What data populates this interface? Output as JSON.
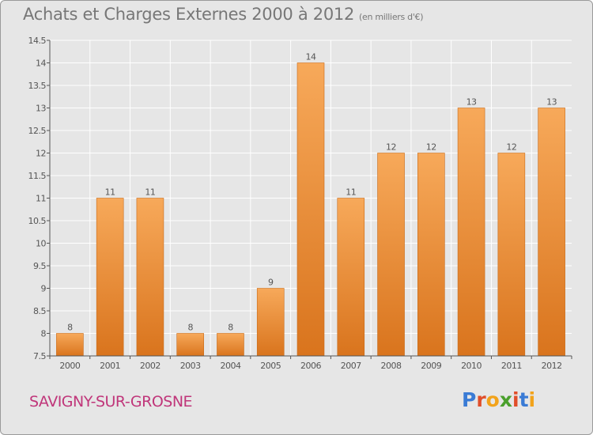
{
  "header": {
    "title": "Achats et Charges Externes 2000 à 2012",
    "unit": "(en milliers d'€)"
  },
  "footer": {
    "commune": "SAVIGNY-SUR-GROSNE",
    "logo_letters": [
      "P",
      "r",
      "o",
      "x",
      "i",
      "t",
      "i"
    ],
    "logo_colors": [
      "#3a7bd5",
      "#e04e2a",
      "#f2a31b",
      "#4aa02c",
      "#e04e2a",
      "#3a7bd5",
      "#f2a31b"
    ]
  },
  "colors": {
    "bar_top": "#f7a95a",
    "bar_bottom": "#d9741d",
    "bar_stroke": "#c86a18",
    "grid": "#ffffff",
    "axis": "#555555",
    "text": "#555555"
  },
  "chart_data": {
    "type": "bar",
    "categories": [
      "2000",
      "2001",
      "2002",
      "2003",
      "2004",
      "2005",
      "2006",
      "2007",
      "2008",
      "2009",
      "2010",
      "2011",
      "2012"
    ],
    "values": [
      8,
      11,
      11,
      8,
      8,
      9,
      14,
      11,
      12,
      12,
      13,
      12,
      13
    ],
    "data_labels": [
      "8",
      "11",
      "11",
      "8",
      "8",
      "9",
      "14",
      "11",
      "12",
      "12",
      "13",
      "12",
      "13"
    ],
    "ylim": [
      7.5,
      14.5
    ],
    "yticks": [
      7.5,
      8,
      8.5,
      9,
      9.5,
      10,
      10.5,
      11,
      11.5,
      12,
      12.5,
      13,
      13.5,
      14,
      14.5
    ],
    "ytick_labels": [
      "7.5",
      "8",
      "8.5",
      "9",
      "9.5",
      "10",
      "10.5",
      "11",
      "11.5",
      "12",
      "12.5",
      "13",
      "13.5",
      "14",
      "14.5"
    ],
    "grid": true,
    "legend": "none",
    "xlabel": "",
    "ylabel": ""
  }
}
